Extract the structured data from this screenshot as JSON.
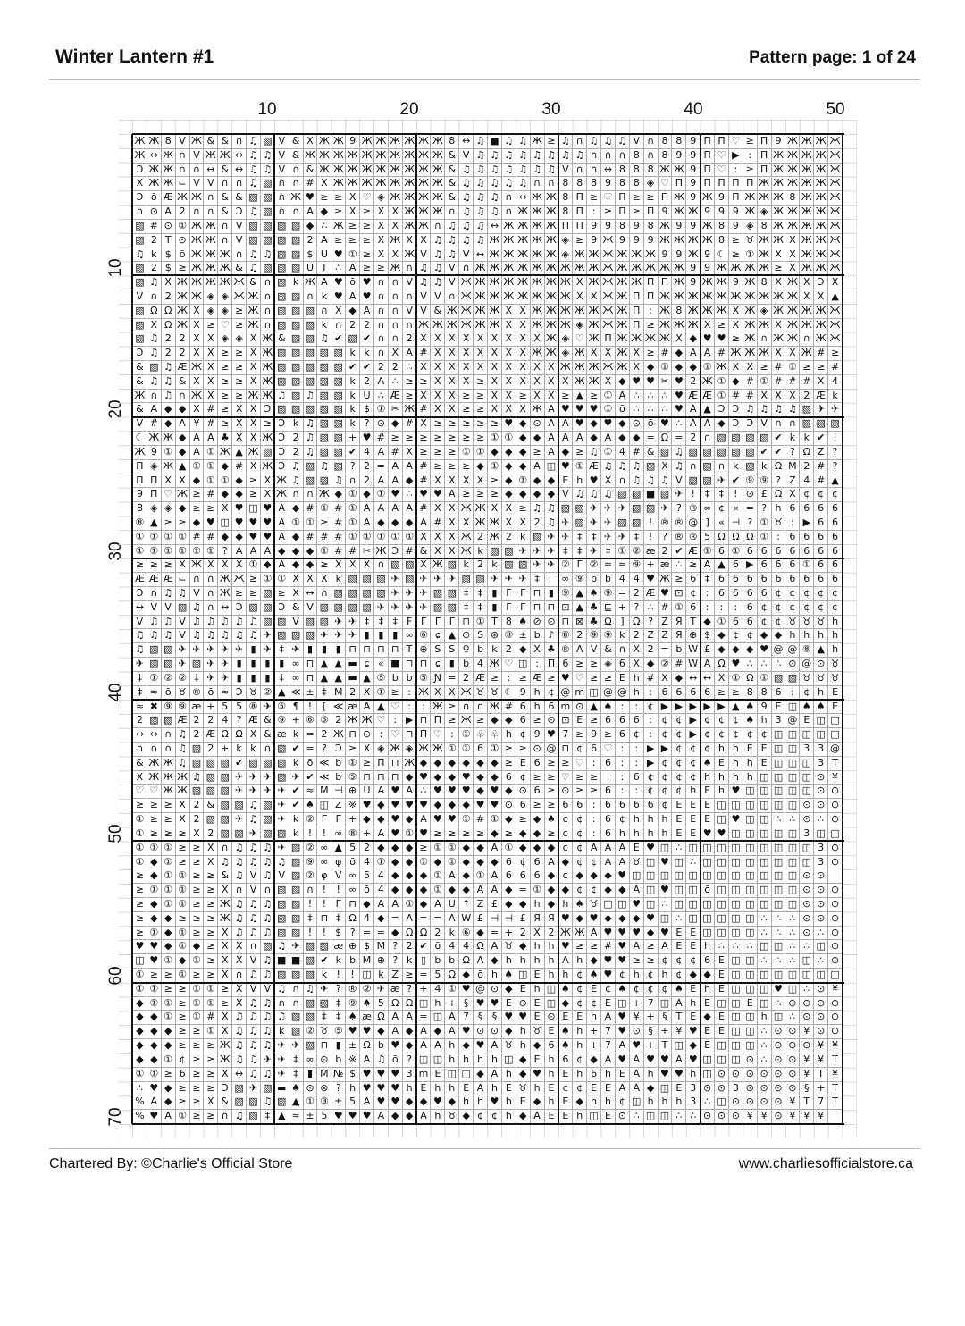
{
  "header": {
    "title": "Winter Lantern #1",
    "page_info": "Pattern page: 1 of 24"
  },
  "axis": {
    "column_labels": [
      "10",
      "20",
      "30",
      "40",
      "50"
    ],
    "row_labels": [
      "10",
      "20",
      "30",
      "40",
      "50",
      "60",
      "70"
    ]
  },
  "footer": {
    "credit": "Chartered By: ©Charlie's Official Store",
    "website": "www.charliesofficialstore.ca"
  },
  "pattern_rows": [
    "ЖЖ8VЖ&&∩♫▧ V&XЖЖ9ЖЖЖЖ ЖЖ8↔♫■♫♫Ж≥ ♫∩♫♫♫V∩889 ΠΠ♡≥Π9ЖЖЖЖ",
    "Ж↔Ж∩VЖЖ↔♫♫ V&ЖЖЖЖЖЖЖЖ ЖЖ&V♫♫♫♫♫♫ ♫♫∩∩∩8∩899 Π♡▶:ΠЖЖЖЖЖ",
    "ƆЖЖ∩∩↔&↔♫♫ V∩&ЖЖЖЖЖЖЖ ЖЖ&♫♫♫♫♫♫♫ V∩∩↔888ЖЖ9 Π♡:≥ΠЖЖЖЖЖ",
    "XЖЖ⌙VV∩∩♫▧ ∩∩#XЖЖЖЖЖЖ ЖЖ&♫♫♫♫♫∩∩ 888988◈♡Π9 ΠΠΠΠЖЖЖЖЖЖ",
    "ƆōÆЖЖ∩&&▧▧ ∩Ж♥≥≥X♡◈ЖЖ ЖЖ&♫♫♫∩↔ЖЖ 8Π≥♡Π≥≥ΠЖ9 Ж9ΠЖЖЖ8ЖЖЖ",
    "∩⊙A2∩∩&Ɔ♫▧ ∩∩A◆≥X≥XXЖ ЖЖ∩♫♫♫∩ЖЖЖ 8Π:≥Π≥Π9ЖЖ 999Ж◈ЖЖЖЖЖ",
    "▧#⊙①ЖЖ∩V▧▧ ▧▧◆∴Ж≥≥XXЖ Ж∩♫♫♫↔ЖЖЖЖ ΠΠ99898Ж99 Ж89◈8ЖЖЖЖЖ",
    "▧2T⊙ЖЖ∩V▧▧ ▧▧2A≥≥≥XЖX X♫♫♫♫ЖЖЖЖЖ ◈≥9Ж999ЖЖЖ Ж8≥♉ЖЖXЖЖЖ",
    "♫k$ōЖЖЖ∩♫♫ ▧▧$U♥①≥XXЖ V♫♫V↔ЖЖЖЖЖ ◈ЖЖЖЖЖЖ99Ж 9☾≥①ЖXXЖЖЖ",
    "▧2$≥ЖЖЖ&♫▧ ▧▧UT∴A≥≥Ж∩ ♫♫V∩ЖЖЖЖЖЖ ЖЖЖЖЖЖЖЖЖ9 9ЖЖЖЖ≥XЖЖЖ",
    "▧♫XЖЖЖЖЖ&∩ ▧kЖA♥ō♥∩∩V ♫♫VЖЖЖЖЖЖЖ ЖXЖЖЖЖΠΠЖ9 ЖЖ9Ж8XЖXƆX",
    "V∩2ЖЖ◈◈ЖЖ∩ ▧▧∩k♥A♥∩∩∩ VV∩ЖЖЖЖЖЖЖ ЖXXЖЖΠΠЖЖЖ ЖЖЖЖЖЖЖXX▲",
    "▧ΩΩЖX◈◈≥Ж∩ ▧▧▧∩X◆A∩∩V V&ЖЖЖЖXXЖЖ ЖЖЖЖЖΠ:Ж8Ж ЖЖXЖ◈ЖЖЖЖЖ",
    "▧XΩЖX≥♡≥Ж∩ ▧▧▧k∩22∩∩∩ ЖЖЖЖЖЖXXЖЖ Ж◈ЖЖЖΠ≥ЖЖЖ X≥XЖЖXЖЖЖЖ",
    "▧♫22XX◈◈XЖ &▧▧♫✔▧✔∩∩2 XXXXXXXXXЖ ◈♡ЖΠЖЖЖЖX◆ ♥♥≥Ж∩ЖЖ∩ЖЖ",
    "Ɔ♫22XX≥≥XЖ ▧▧▧▧▧kk∩XA #XXXXXXXЖЖ ◈ЖXXЖX≥#◆A A#ЖЖЖXXЖ#≥",
    "&▧♫ÆЖX≥≥XЖ ▧▧▧▧▧✔✔22∴ XXXXXXXXXX ЖЖЖЖЖX◆①◆◆ ①ЖXX≥#①≥≥#",
    "&♫♫&XX≥≥XЖ ▧▧▧▧▧k2A∴≥ ≥XXX≥XXXXX XЖЖX◆♥♥✂♥2 Ж①◆#①###X4",
    "Ж∩♫∩ЖX≥≥ЖЖ ♫▧♫▧▧kU∴Æ≥ XXX≥≥XX≥XX ≥▲≥①A∴∴∴♥Æ Æ①##XXX2Æk",
    "&A◆◆X#≥XXƆ ▧▧▧▧▧k$①✂Ж #XX≥≥XXXЖA ♥♥♥①ō∴∴∴♥A ▲ƆƆ♫♫♫♫▧✈✈",
    "V#◆A¥#≥XX≥ Ɔk♫▧▧k?⊙◆# X≥≥≥≥≥♥◆⊙A A♥◆♥◆⊙ō♥∴A A◆ƆƆV∩∩▧▧▧",
    "☾ЖЖ◆AA♣XXЖ Ɔ2♫▧▧+♥#≥≥ ≥≥≥≥≥①①◆◆A AA◆A◆◆=Ω=2 ∩▧▧▧▧✔kk✔!",
    "Ж9①◆A①Ж▲Ж▧ Ɔ2♫▧▧✔4A#X ≥≥≥①①◆◆◆≥A ◆≥♫①4#&▧♫▧ ▧▧▧▧✔✔?ΩZ?",
    "Π◈Ж▲①①◆#XЖ Ɔ♫▧♫▧?2=AA #≥≥≥◆①◆◆A◫ ♥①Æ♫♫♫▧X♫∩ ▧∩k▧kΩM2#?",
    "ΠΠXX◆①①◆≥X Ж♫▧▧♫∩2AA◆ #XXXX≥◆①◆◆ Eh♥X∩♫♫♫V▧ ▧✈✔⑨⑨?Z4#▲",
    "9Π♡Ж≥#◆◆≥X Ж∩∩Ж◆①◆①♥∴ ♥♥A≥≥≥◆◆◆◆ V♫♫♫▧▧■▧✈! ‡‡!⊙£ΩX¢¢¢",
    "8◈◈◆≥≥X♥◫♥ A◆#①#①AAAA #XXЖЖXX≥♫♫ ▧▧✈✈✈▧▧✈?® ∞¢«=?h6666",
    "⑧▲≥≥◆♥◫♥♥♥ A①①≥#①A◆◆◆ A#XXЖЖXX2♫ ✈▧✈✈▧▧!®®@ ]«⊣?①♉:▶66",
    "①①①①##◆◆♥♥ A◆###①①①①① XXXЖ2Ж2k▧✈ ✈‡‡✈✈‡!?®® 5ΩΩΩ①:6666",
    "①①①①①①?AAA ◆◆◆①##✂ЖƆ# &XXЖk▧▧✈✈✈ ‡‡✈‡①②æ2✔Æ ①6①6666666",
    "≥≥≥XЖXXX①◆ A◆◆≥XXX∩▧▧ XЖ▧k2k▧▧✈✈ ②Γ②≈≈⑨+æ∴≥ A▲6▶666①66",
    "ÆÆÆ⌙∩∩ЖЖ≥① ①XXXk▧▧▧✈▧ ✈✈✈▧▧✈✈✈‡Γ ∞⑨bb44♥Ж≥6 ‡666666666",
    "Ɔ∩♫♫V∩Ж≥≥▧ ≥X↔∩▧▧▧▧✈✈ ✈▧▧‡‡▮ΓΓ⊓▮ ⑨▲♠⑨=2Æ♥⊡¢ :6666¢¢¢¢¢",
    "↔VV▧♫∩↔Ɔ▧▧ Ɔ&V▧▧▧▧✈✈✈ ✈▧▧‡‡▮ΓΓ⊓⊓ ⊡▲♣⊑+?∴#①6 :::6¢¢¢¢¢¢",
    "V♫♫V♫♫♫♫♫▧ ▧V▧▧✈✈‡‡‡F ΓΓΓ⊓①T8♠⊘⊙ ⊓⊠♣Ω]Ω?ZЯT ◆①66¢¢♉♉♉h",
    "♫♫♫V♫♫♫♫♫✈ ▧▧▧✈✈✈▮▮▮∞ ⑥ɕ▲⊙S⊛⑧±b♪ ⑧2⑨⑨k2ZZЯ⊕ $◆¢¢◆◆hhhh",
    "♫▧▧✈✈✈✈✈▮✈ ‡✈▮▮▮⊓⊓⊓⊓T ⊕SS♀bk2◆X♣ ®AV&∩X2=bW £◆◆◆♥@@⑧▲h",
    "✈▧▧✈▧✈✈▮▮▮ ▮∞⊓▲▲▬ɕ«■⊓ ⊓ɕ▮b4Ж♡◫:Π 6≥≥◈6X◆②#W AΩ♥∴∴∴⊙@⊙♉",
    "‡①②②‡✈✈▮▮▮ ‡∞⊓▲▲▬▲⑤bb ⑤Ɲ=2Æ≥:≥Æ≥ ♥♡≥≥Eh#X◆↔ ↔X①Ω①▧▧♉♉♉",
    "‡≈ō♉®ō≈Ɔ♉② ▲≪±‡M2X①≥: ЖXXЖ♉♉☾9h¢ @m◫@@h:666 6≥≥886:¢hE",
    "≈✖⑨⑨æ+55⑧✈ ⑤¶![≪æA▲♡: :Ж≥∩∩Ж#6h6 m⊙▲♠::¢▶▶▶ ▶▶▲♠9E◫♠♠E",
    "2▧▧Æ224?Æ& ⑨+⑥⑥2ЖЖ♡:▶ ⊓Π≥Ж≥◆◆6≥⊙ ⊡E≥666:¢¢▶ ¢¢¢♠h3@E◫◫",
    "↔↔∩♫2ÆΩΩX& æk=2Ж⊓⊙:♡⊓ Π♡:①♧♧h¢9♥ 7≥9≥6¢:¢¢▶ ¢¢¢¢¢◫◫◫◫◫",
    "∩∩∩♫▧2+kk∩ ▧✔=?Ɔ≥X◈Ж◈ ЖЖ①①6①≥≥⊙@ ⊓¢6♡::▶▶¢¢ ¢hhEE◫◫33@",
    "&ЖЖ♫▧▧▧✔▧▧ ▧kō≪b①≥Π⊓Ж ◆◆◆◆◆◆≥E6≥ ≥♡:6::▶¢¢¢ ♠EhhE◫◫◫3T",
    "XЖЖЖ♫▧▧✈✈✈ ▧✈✔≪b⑤⊓⊓⊓◆ ♥◆◆♥◆◆6¢≥≥ ♡≥≥::6¢¢¢¢ hhhh◫◫◫◫⊙¥",
    "♡♡ЖЖ▧▧▧✈✈✈ ✈✔≈M⊣⊕UA♥A ∴♥♥♥◆♥◆⊙6≥ ⊙≥≥6::¢¢¢h Eh♥◫◫◫◫◫⊙⊙",
    "≥≥≥X2&▧▧♫▧ ✈✔♠◫Z※♥◆♥♥ ♥◆◆◆♥♥⊙6≥≥ 66:6666¢EE E◫◫◫◫◫◫⊙⊙⊙",
    "①≥≥X2▧▧✈♫▧ ✈k②ΓΓ+◆◆♥◆ A♥♥①#①◆≥◆♠ ¢¢:6¢hhhEE E◫♥◫◫∴∴⊙∴⊙",
    "①≥≥≥X2▧▧✈▧ ▧k!!∞⑧+A♥① ♥≥≥≥≥◆≥◆◆≥ ¢¢:6hhhhEE ♥♥◫◫◫◫◫3◫◫",
    "①①①≥≥X∩♫♫♫ ✈▧②∞▲52◆◆◆ ≥①①◆◆A①◆◆◆ ¢¢AAAE♥◫∴◫ ◫◫◫◫◫◫◫◫3⊙",
    "①◆①≥≥X♫♫♫♫ ♫▧⑨∞φō4①◆◆ ①◆①◆◆◆6¢6A ◆¢¢AA♉◫♥◫∴ ◫◫◫◫◫◫◫◫3⊙",
    "≥◆①①≥≥&♫V♫ V▧②φV∞54◆◆ ◆①A◆①A666 ◆¢◆◆◆♥◫◫◫◫ ◫◫◫◫◫◫◫◫⊙⊙",
    "≥①①①≥≥X∩V∩ ▧▧∩!!∞ō4◆◆ ◆①◆◆AA◆=①◆ ◆¢¢◆◆A◫♥◫◫ ō◫◫◫◫◫◫⊙⊙⊙",
    "≥◆①①≥≥Ж♫♫♫ ▧▧!!Γ⊓◆AA① ◆AU↑Z£◆◆h◆ h♠♉◫◫♥◫∴◫◫ ◫◫◫◫◫◫◫⊙⊙⊙",
    "≥◆◆≥≥≥Ж♫♫♫ ▧▧‡⊓‡Ω4◆=A ==AW£⊣⊣£ЯЯ ♥◆♥◆◆◆♥◫∴◫ ◫◫◫◫∴∴∴⊙⊙⊙",
    "≥①◆①≥≥X♫♫♫ ▧▧!!$?==◆Ω Ω2k⑥◆=+2X2 ЖЖA♥♥♥◆♥EE ◫◫◫◫∴∴∴⊙∴⊙",
    "♥♥◆①◆≥XX∩▧ ♫✈▧▧æ⊕$M?2 ✔ō44ΩA♉◆hh ♥≥≥#♥A≥AEE h∴∴∴◫◫∴∴◫⊙",
    "◫♥①◆①≥XXV♫ ■■▧✔kbM⊕?k ▯bbΩA◆hhhh Ah◆♥♥≥≥¢¢¢ 6E◫◫∴∴∴◫∴⊙",
    "①≥≥①≥≥X∩♫♫ ▧▧▧k!!◫kZ≥ =5Ω◆ōh♠◫Eh h¢♠♥¢h¢h¢◆ ◆E◫◫◫◫◫◫◫◫",
    "①①≥≥①①≥XVV ♫∩♫✈?®②✈æ? +4①♥@⊙◆Eh◫ ♠¢E¢♠¢¢¢♠E hE◫◫◫♥◫∴⊙¥",
    "◆①①≥①①≥X♫♫ ∩∩▧▧‡⑨♠5ΩΩ ◫h+§♥♥E⊙E◫ ◆¢¢E◫+7◫Ah E◫◫E◫∴⊙⊙⊙⊙",
    "◆◆①≥①#X♫♫♫ ♫▧▧‡‡♠æΩAA =◫A7§§♥♥E⊙ EEhA♥¥+§TE ◆E◫◫h◫∴⊙⊙⊙",
    "◆◆◆≥≥①X♫♫♫ k▧②♉⑤♥♥◆A◆ A◆A♥⊙⊙◆h♉E ♠h+7♥⊙§+¥♥ EE◫◫∴⊙⊙¥⊙⊙",
    "◆◆◆≥≥≥Ж♫♫♫ ✈✈▧⊓▮±Ωb♥◆ AAh◆♥A♉h◆6 ♠h+7A♥+T◫◆ E◫◫◫∴⊙⊙⊙¥¥",
    "◆◆①¢≥≥Ж♫♫✈ ✈‡∞⊙b※A♫ō? ◫◫hhhh◫◆Eh 6¢◆A♥A♥♥A♥ ◫◫◫⊙∴⊙⊙¥¥T",
    "①①≥6≥≥X↔♫♫ ✈‡▮M№$♥♥♥3 mE◫◫◆Ah◆♥h Eh6hEAh♥♥h ◫⊙⊙⊙⊙⊙⊙¥T¥",
    "∴♥◆≥≥≥Ɔ▧✈▧ ▬♠⊙⊗?h♥♥♥h EhhEAhE♉hE ¢¢EEAA◆◫E3 ⊙⊙3⊙⊙⊙⊙§+T",
    "%A◆≥≥X&▧▧♫ ▧▲①③±5A♥♥◆ ◆♥◆hh♥hE◆h E◆hh¢◫hhh3 ∴◫⊙⊙⊙⊙¥T7T",
    "%♥A①≥≥∩♫▧‡ ▲≈±5♥♥♥A◆◆ Ah♉◆¢¢h◆AE Eh◫E⊙∴◫◫∴∴ ⊙⊙⊙¥¥⊙¥¥¥"
  ]
}
